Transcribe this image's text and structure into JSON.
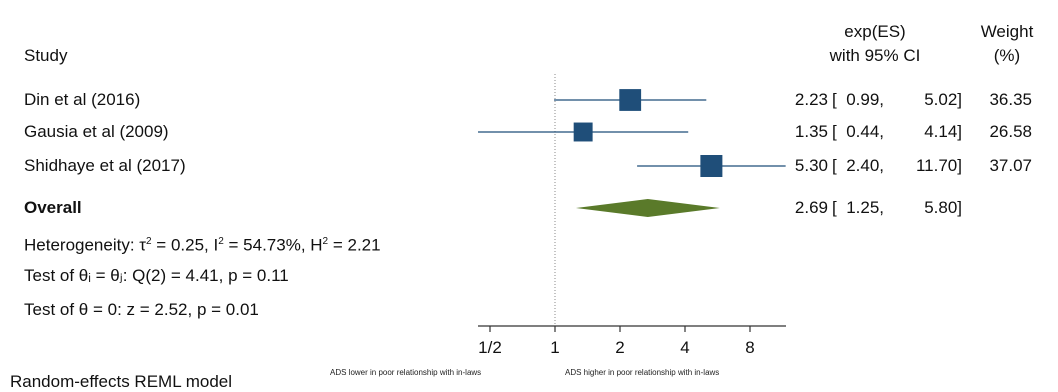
{
  "chart_data": {
    "type": "forest",
    "header": {
      "study": "Study",
      "es_line1": "exp(ES)",
      "es_line2": "with 95% CI",
      "weight_line1": "Weight",
      "weight_line2": "(%)"
    },
    "studies": [
      {
        "label": "Din et al (2016)",
        "es": 2.23,
        "lo": 0.99,
        "hi": 5.02,
        "es_text": "2.23",
        "lo_text": "0.99,",
        "hi_text": "5.02]",
        "weight": 36.35,
        "weight_text": "36.35"
      },
      {
        "label": "Gausia et al (2009)",
        "es": 1.35,
        "lo": 0.44,
        "hi": 4.14,
        "es_text": "1.35",
        "lo_text": "0.44,",
        "hi_text": "4.14]",
        "weight": 26.58,
        "weight_text": "26.58"
      },
      {
        "label": "Shidhaye et al (2017)",
        "es": 5.3,
        "lo": 2.4,
        "hi": 11.7,
        "es_text": "5.30",
        "lo_text": "2.40,",
        "hi_text": "11.70]",
        "weight": 37.07,
        "weight_text": "37.07"
      }
    ],
    "overall": {
      "label": "Overall",
      "es": 2.69,
      "lo": 1.25,
      "hi": 5.8,
      "es_text": "2.69",
      "lo_text": "1.25,",
      "hi_text": "5.80]"
    },
    "stats": {
      "heterogeneity_prefix": "Heterogeneity: τ",
      "tau_sup": "2",
      "tau_val": " = 0.25, I",
      "i_sup": "2",
      "i_val": " = 54.73%, H",
      "h_sup": "2",
      "h_val": " = 2.21",
      "test_equal": "Test of θᵢ = θⱼ: Q(2) = 4.41, p = 0.11",
      "test_zero": "Test of θ = 0: z = 2.52, p = 0.01"
    },
    "x_axis": {
      "scale": "log",
      "ticks": [
        {
          "value": 0.5,
          "label": "1/2"
        },
        {
          "value": 1,
          "label": "1"
        },
        {
          "value": 2,
          "label": "2"
        },
        {
          "value": 4,
          "label": "4"
        },
        {
          "value": 8,
          "label": "8"
        }
      ],
      "range": [
        0.35,
        12
      ],
      "null_line": 1,
      "note_left": "ADS lower in poor relationship with in-laws",
      "note_right": "ADS higher in poor relationship with in-laws"
    },
    "footer": "Random-effects REML model",
    "colors": {
      "marker": "#1f4e79",
      "ci_line": "#1f4e79",
      "diamond": "#5a7a2a",
      "null_line": "#888888"
    }
  }
}
